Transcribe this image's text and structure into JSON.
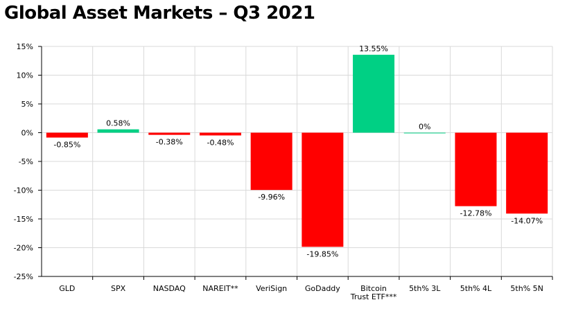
{
  "chart_data": {
    "type": "bar",
    "title": "Global Asset Markets – Q3 2021",
    "xlabel": "",
    "ylabel": "",
    "ylim": [
      -25,
      15
    ],
    "yticks": [
      15,
      10,
      5,
      0,
      -5,
      -10,
      -15,
      -20,
      -25
    ],
    "ytick_labels": [
      "15%",
      "10%",
      "5%",
      "0%",
      "-5%",
      "-10%",
      "-15%",
      "-20%",
      "-25%"
    ],
    "categories": [
      [
        "GLD"
      ],
      [
        "SPX"
      ],
      [
        "NASDAQ"
      ],
      [
        "NAREIT**"
      ],
      [
        "VeriSign"
      ],
      [
        "GoDaddy"
      ],
      [
        "Bitcoin",
        "Trust ETF***"
      ],
      [
        "5th% 3L"
      ],
      [
        "5th% 4L"
      ],
      [
        "5th% 5N"
      ]
    ],
    "values": [
      -0.85,
      0.58,
      -0.38,
      -0.48,
      -9.96,
      -19.85,
      13.55,
      0,
      -12.78,
      -14.07
    ],
    "data_labels": [
      "-0.85%",
      "0.58%",
      "-0.38%",
      "-0.48%",
      "-9.96%",
      "-19.85%",
      "13.55%",
      "0%",
      "-12.78%",
      "-14.07%"
    ],
    "grid": true,
    "colors": {
      "positive": "#00d084",
      "negative": "#ff0000",
      "grid": "#d9d9d9",
      "axis": "#000000"
    }
  }
}
